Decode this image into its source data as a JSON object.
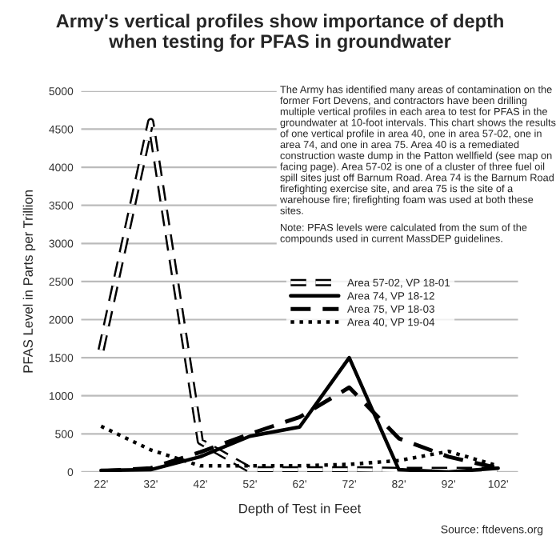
{
  "chart_data": {
    "type": "line",
    "title": "Army's vertical profiles show importance of depth\nwhen testing for PFAS in groundwater",
    "xlabel": "Depth of Test in Feet",
    "ylabel": "PFAS Level in Parts per Trillion",
    "categories": [
      "22'",
      "32'",
      "42'",
      "52'",
      "62'",
      "72'",
      "82'",
      "92'",
      "102'"
    ],
    "series": [
      {
        "name": "Area 57-02, VP 18-01",
        "color": "#000000",
        "line_style": "hollow",
        "values": [
          1600,
          4600,
          400,
          30,
          30,
          30,
          20,
          20,
          20
        ]
      },
      {
        "name": "Area 74, VP 18-12",
        "color": "#000000",
        "line_style": "solid",
        "values": [
          20,
          30,
          200,
          470,
          590,
          1500,
          30,
          0,
          50
        ]
      },
      {
        "name": "Area 75, VP 18-03",
        "color": "#000000",
        "line_style": "dashed",
        "values": [
          10,
          50,
          260,
          500,
          720,
          1110,
          440,
          200,
          50
        ]
      },
      {
        "name": "Area 40, VP 19-04",
        "color": "#000000",
        "line_style": "dotted",
        "values": [
          600,
          290,
          80,
          80,
          80,
          100,
          150,
          270,
          80
        ]
      }
    ],
    "ylim": [
      0,
      5000
    ],
    "yticks": [
      0,
      500,
      1000,
      1500,
      2000,
      2500,
      3000,
      3500,
      4000,
      4500,
      5000
    ],
    "grid": "y",
    "legend": "right",
    "annotations": [
      "The Army has identified many areas of contamination on the former Fort Devens, and contractors have been drilling multiple vertical profiles in each area to test for PFAS in the groundwater at 10-foot intervals. This chart shows the results of one vertical profile in area 40, one in area 57-02, one in area 74, and one in area 75. Area 40 is a remediated construction waste dump in the Patton wellfield (see map on facing page). Area 57-02 is one of a cluster of three fuel oil spill sites just off Barnum Road. Area 74 is the Barnum Road firefighting exercise site, and area 75 is the site of a warehouse fire; firefighting foam was used at both these sites.",
      "Note: PFAS levels were calculated from the sum of the compounds used in current MassDEP guidelines.",
      "Source: ftdevens.org"
    ]
  }
}
